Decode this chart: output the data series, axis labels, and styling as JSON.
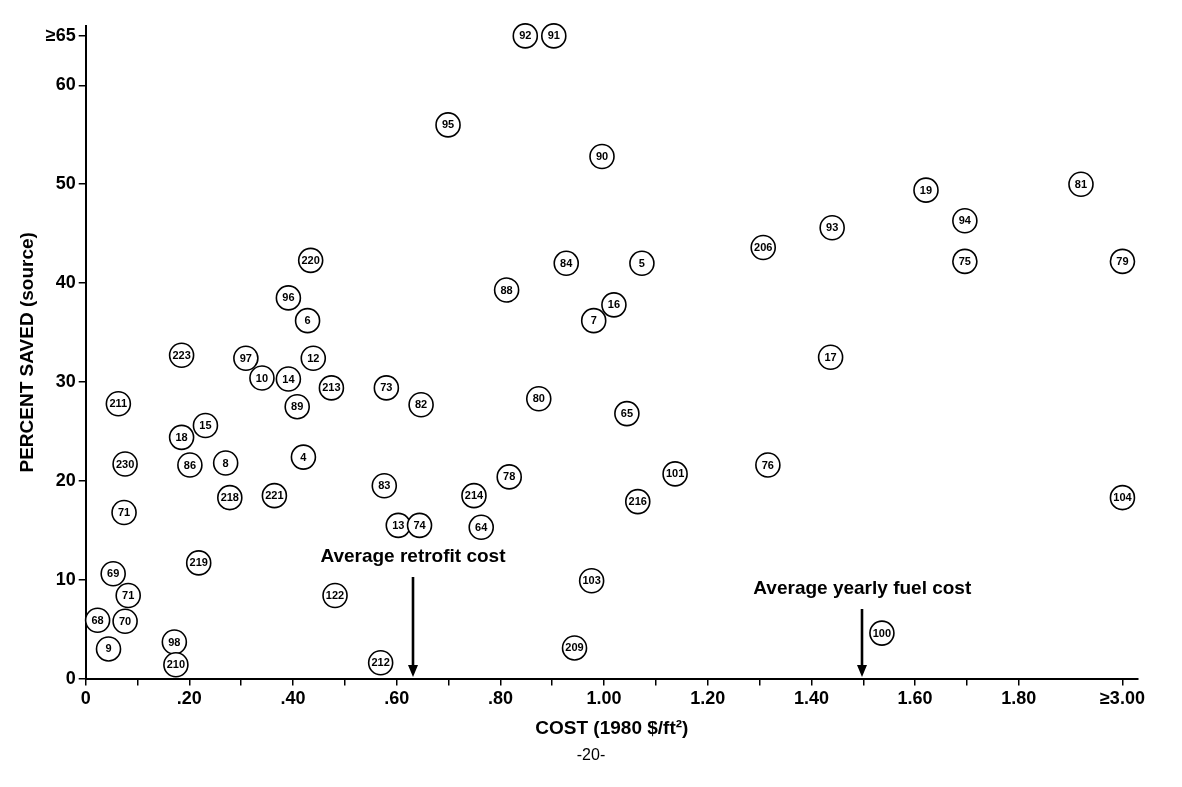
{
  "chart_data": {
    "type": "scatter",
    "xlabel": "COST (1980 $/ft²)",
    "ylabel": "PERCENT SAVED (source)",
    "x": [
      0.848,
      0.903,
      0.699,
      0.996,
      1.621,
      1.92,
      1.307,
      1.44,
      1.696,
      0.434,
      0.927,
      1.073,
      1.696,
      2.0,
      0.812,
      0.391,
      1.019,
      0.428,
      0.98,
      1.437,
      0.185,
      0.309,
      0.34,
      0.439,
      0.391,
      0.474,
      0.58,
      0.647,
      0.874,
      0.063,
      0.408,
      1.044,
      0.231,
      0.185,
      0.076,
      0.201,
      0.27,
      0.42,
      1.316,
      1.137,
      0.576,
      0.817,
      0.278,
      0.364,
      0.749,
      1.065,
      2.0,
      0.074,
      0.603,
      0.644,
      0.763,
      0.218,
      0.976,
      0.053,
      0.082,
      0.481,
      0.023,
      0.076,
      1.536,
      0.044,
      0.171,
      0.174,
      0.569,
      0.943
    ],
    "series": [
      {
        "color": "#000000",
        "values": [
          65,
          65,
          56.0,
          52.8,
          49.4,
          50.0,
          43.6,
          45.6,
          46.3,
          42.3,
          42.0,
          42.0,
          42.2,
          42.2,
          39.3,
          38.5,
          37.8,
          36.2,
          36.2,
          32.5,
          32.7,
          32.4,
          30.4,
          32.4,
          30.3,
          29.4,
          29.4,
          27.7,
          28.3,
          27.8,
          27.5,
          26.8,
          25.6,
          24.4,
          21.7,
          21.6,
          21.8,
          22.4,
          21.6,
          20.7,
          19.5,
          20.4,
          18.3,
          18.5,
          18.5,
          17.9,
          18.3,
          16.8,
          15.5,
          15.5,
          15.3,
          11.7,
          9.9,
          10.6,
          8.4,
          8.4,
          5.9,
          5.8,
          4.6,
          3.0,
          3.7,
          1.4,
          1.6,
          3.1
        ]
      }
    ],
    "marker": "circle",
    "xlim": [
      0,
      2.03
    ],
    "xticks": [
      0,
      {
        "value": 0.1,
        "label": null
      },
      {
        "value": 0.2,
        "label": ".20"
      },
      {
        "value": 0.3,
        "label": null
      },
      {
        "value": 0.4,
        "label": ".40"
      },
      {
        "value": 0.5,
        "label": null
      },
      {
        "value": 0.6,
        "label": ".60"
      },
      {
        "value": 0.7,
        "label": null
      },
      {
        "value": 0.8,
        "label": ".80"
      },
      {
        "value": 0.9,
        "label": null
      },
      {
        "value": 1.0,
        "label": "1.00"
      },
      {
        "value": 1.1,
        "label": null
      },
      {
        "value": 1.2,
        "label": "1.20"
      },
      {
        "value": 1.3,
        "label": null
      },
      {
        "value": 1.4,
        "label": "1.40"
      },
      {
        "value": 1.5,
        "label": null
      },
      {
        "value": 1.6,
        "label": "1.60"
      },
      {
        "value": 1.7,
        "label": null
      },
      {
        "value": 1.8,
        "label": "1.80"
      },
      {
        "value": 2.0,
        "label": "≥3.00"
      }
    ],
    "ylim": [
      0,
      66
    ],
    "yticks": [
      0,
      10,
      20,
      30,
      40,
      50,
      60,
      {
        "value": 65,
        "label": "≥65"
      }
    ],
    "grid": false,
    "legend": false,
    "annotations": [
      "Average retrofit cost",
      "Average yearly fuel cost",
      {
        "text": "92",
        "x": 0.848,
        "y": 65
      },
      {
        "text": "91",
        "x": 0.903,
        "y": 65
      },
      {
        "text": "95",
        "x": 0.699,
        "y": 56.0
      },
      {
        "text": "90",
        "x": 0.996,
        "y": 52.8
      },
      {
        "text": "19",
        "x": 1.621,
        "y": 49.4
      },
      {
        "text": "81",
        "x": 1.92,
        "y": 50.0
      },
      {
        "text": "206",
        "x": 1.307,
        "y": 43.6
      },
      {
        "text": "93",
        "x": 1.44,
        "y": 45.6
      },
      {
        "text": "94",
        "x": 1.696,
        "y": 46.3
      },
      {
        "text": "220",
        "x": 0.434,
        "y": 42.3
      },
      {
        "text": "84",
        "x": 0.927,
        "y": 42.0
      },
      {
        "text": "5",
        "x": 1.073,
        "y": 42.0
      },
      {
        "text": "75",
        "x": 1.696,
        "y": 42.2
      },
      {
        "text": "79",
        "x": 2.0,
        "y": 42.2
      },
      {
        "text": "88",
        "x": 0.812,
        "y": 39.3
      },
      {
        "text": "96",
        "x": 0.391,
        "y": 38.5
      },
      {
        "text": "16",
        "x": 1.019,
        "y": 37.8
      },
      {
        "text": "6",
        "x": 0.428,
        "y": 36.2
      },
      {
        "text": "7",
        "x": 0.98,
        "y": 36.2
      },
      {
        "text": "17",
        "x": 1.437,
        "y": 32.5
      },
      {
        "text": "223",
        "x": 0.185,
        "y": 32.7
      },
      {
        "text": "97",
        "x": 0.309,
        "y": 32.4
      },
      {
        "text": "10",
        "x": 0.34,
        "y": 30.4
      },
      {
        "text": "12",
        "x": 0.439,
        "y": 32.4
      },
      {
        "text": "14",
        "x": 0.391,
        "y": 30.3
      },
      {
        "text": "213",
        "x": 0.474,
        "y": 29.4
      },
      {
        "text": "73",
        "x": 0.58,
        "y": 29.4
      },
      {
        "text": "82",
        "x": 0.647,
        "y": 27.7
      },
      {
        "text": "80",
        "x": 0.874,
        "y": 28.3
      },
      {
        "text": "211",
        "x": 0.063,
        "y": 27.8
      },
      {
        "text": "89",
        "x": 0.408,
        "y": 27.5
      },
      {
        "text": "65",
        "x": 1.044,
        "y": 26.8
      },
      {
        "text": "15",
        "x": 0.231,
        "y": 25.6
      },
      {
        "text": "18",
        "x": 0.185,
        "y": 24.4
      },
      {
        "text": "230",
        "x": 0.076,
        "y": 21.7
      },
      {
        "text": "86",
        "x": 0.201,
        "y": 21.6
      },
      {
        "text": "8",
        "x": 0.27,
        "y": 21.8
      },
      {
        "text": "4",
        "x": 0.42,
        "y": 22.4
      },
      {
        "text": "76",
        "x": 1.316,
        "y": 21.6
      },
      {
        "text": "101",
        "x": 1.137,
        "y": 20.7
      },
      {
        "text": "83",
        "x": 0.576,
        "y": 19.5
      },
      {
        "text": "78",
        "x": 0.817,
        "y": 20.4
      },
      {
        "text": "218",
        "x": 0.278,
        "y": 18.3
      },
      {
        "text": "221",
        "x": 0.364,
        "y": 18.5
      },
      {
        "text": "214",
        "x": 0.749,
        "y": 18.5
      },
      {
        "text": "216",
        "x": 1.065,
        "y": 17.9
      },
      {
        "text": "104",
        "x": 2.0,
        "y": 18.3
      },
      {
        "text": "71",
        "x": 0.074,
        "y": 16.8
      },
      {
        "text": "13",
        "x": 0.603,
        "y": 15.5
      },
      {
        "text": "74",
        "x": 0.644,
        "y": 15.5
      },
      {
        "text": "64",
        "x": 0.763,
        "y": 15.3
      },
      {
        "text": "219",
        "x": 0.218,
        "y": 11.7
      },
      {
        "text": "103",
        "x": 0.976,
        "y": 9.9
      },
      {
        "text": "69",
        "x": 0.053,
        "y": 10.6
      },
      {
        "text": "71",
        "x": 0.082,
        "y": 8.4
      },
      {
        "text": "122",
        "x": 0.481,
        "y": 8.4
      },
      {
        "text": "68",
        "x": 0.023,
        "y": 5.9
      },
      {
        "text": "70",
        "x": 0.076,
        "y": 5.8
      },
      {
        "text": "100",
        "x": 1.536,
        "y": 4.6
      },
      {
        "text": "9",
        "x": 0.044,
        "y": 3.0
      },
      {
        "text": "98",
        "x": 0.171,
        "y": 3.7
      },
      {
        "text": "210",
        "x": 0.174,
        "y": 1.4
      },
      {
        "text": "212",
        "x": 0.569,
        "y": 1.6
      },
      {
        "text": "209",
        "x": 0.943,
        "y": 3.1
      },
      "-20-"
    ]
  }
}
